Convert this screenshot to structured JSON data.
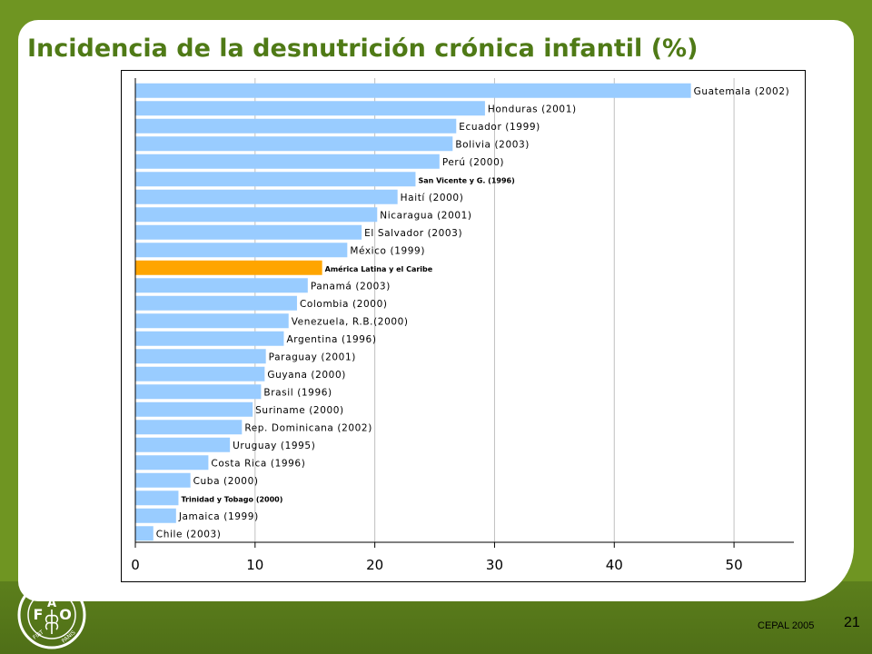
{
  "slide": {
    "title": "Incidencia de la desnutrición crónica infantil (%)",
    "source": "CEPAL 2005",
    "page_number": "21",
    "logo_text": {
      "top": "FAO",
      "bottom": "FIAT PANIS"
    }
  },
  "colors": {
    "background": "#6f9522",
    "title": "#4f7a16",
    "bar": "#99ccff",
    "highlight_bar": "#ffa500"
  },
  "chart_data": {
    "type": "bar",
    "orientation": "horizontal",
    "title": "",
    "xlabel": "",
    "ylabel": "",
    "xlim": [
      0,
      55
    ],
    "xticks": [
      0,
      10,
      20,
      30,
      40,
      50
    ],
    "grid": true,
    "legend": "none",
    "categories": [
      "Guatemala (2002)",
      "Honduras (2001)",
      "Ecuador (1999)",
      "Bolivia (2003)",
      "Perú (2000)",
      "San Vicente y G. (1996)",
      "Haití (2000)",
      "Nicaragua (2001)",
      "El Salvador (2003)",
      "México (1999)",
      "América Latina y el Caribe",
      "Panamá (2003)",
      "Colombia (2000)",
      "Venezuela, R.B.(2000)",
      "Argentina (1996)",
      "Paraguay (2001)",
      "Guyana (2000)",
      "Brasil (1996)",
      "Suriname (2000)",
      "Rep. Dominicana (2002)",
      "Uruguay (1995)",
      "Costa Rica (1996)",
      "Cuba (2000)",
      "Trinidad y Tobago (2000)",
      "Jamaica (1999)",
      "Chile (2003)"
    ],
    "values": [
      46.4,
      29.2,
      26.8,
      26.5,
      25.4,
      23.4,
      21.9,
      20.2,
      18.9,
      17.7,
      15.6,
      14.4,
      13.5,
      12.8,
      12.4,
      10.9,
      10.8,
      10.5,
      9.8,
      8.9,
      7.9,
      6.1,
      4.6,
      3.6,
      3.4,
      1.5
    ],
    "highlight": "América Latina y el Caribe"
  }
}
